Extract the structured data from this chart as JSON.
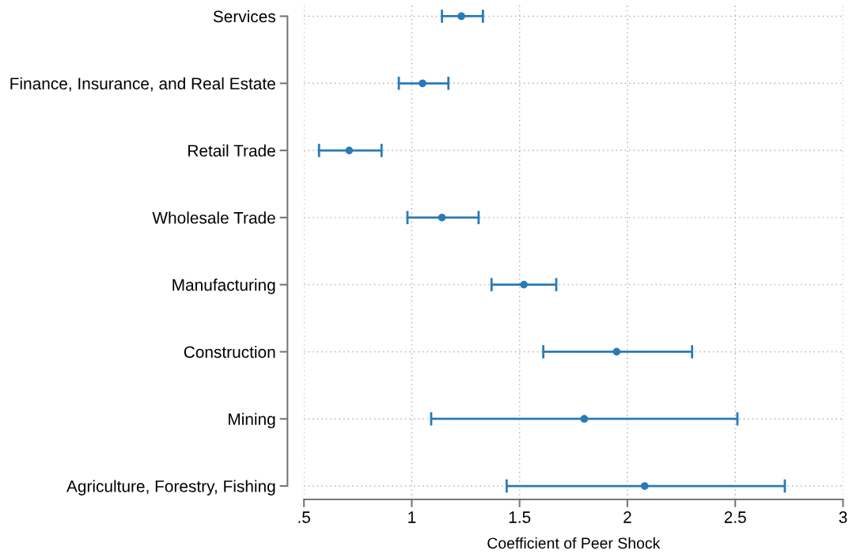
{
  "chart_data": {
    "type": "scatter",
    "orientation": "horizontal",
    "xlabel": "Coefficient of Peer Shock",
    "categories": [
      "Services",
      "Finance, Insurance, and Real Estate",
      "Retail Trade",
      "Wholesale Trade",
      "Manufacturing",
      "Construction",
      "Mining",
      "Agriculture, Forestry, Fishing"
    ],
    "series": [
      {
        "color": "#2a7ab6",
        "values": [
          1.23,
          1.05,
          0.71,
          1.14,
          1.52,
          1.95,
          1.8,
          2.08
        ],
        "errors": [
          [
            1.14,
            1.33
          ],
          [
            0.94,
            1.17
          ],
          [
            0.57,
            0.86
          ],
          [
            0.98,
            1.31
          ],
          [
            1.37,
            1.67
          ],
          [
            1.61,
            2.3
          ],
          [
            1.09,
            2.51
          ],
          [
            1.44,
            2.73
          ]
        ]
      }
    ],
    "xlim": [
      0.5,
      3
    ],
    "xticks": [
      {
        "value": 0.5,
        "label": ".5"
      },
      1,
      1.5,
      2,
      2.5,
      3
    ],
    "grid": true,
    "marker": "circle"
  }
}
